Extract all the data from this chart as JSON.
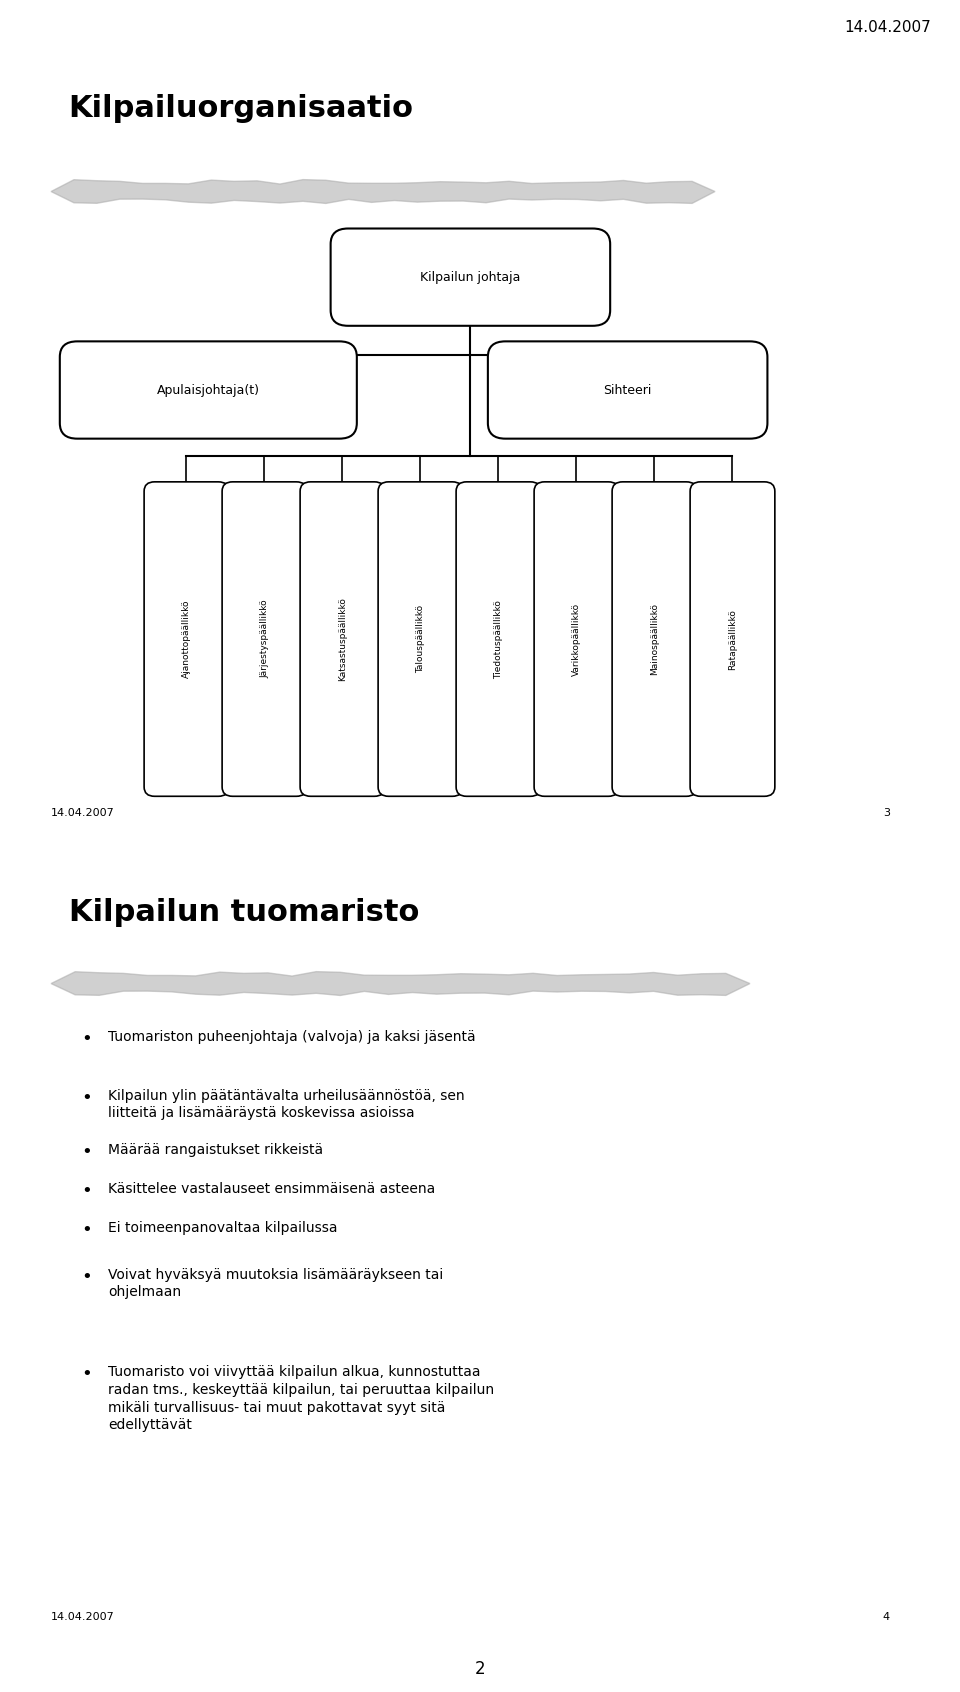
{
  "page_bg": "#f0f0f0",
  "date_text": "14.04.2007",
  "page_number_bottom": "2",
  "slide1": {
    "title": "Kilpailuorganisaatio",
    "footer_date": "14.04.2007",
    "footer_page": "3",
    "top_node": "Kilpailun johtaja",
    "left_node": "Apulaisjohtaja(t)",
    "right_node": "Sihteeri",
    "bottom_nodes": [
      "Ajanottopäällikkö",
      "Järjestyspäällikkö",
      "Katsastuspäällikkö",
      "Talouspäällikkö",
      "Tiedotuspäällikkö",
      "Varikkopäällikkö",
      "Mainospäällikkö",
      "Ratapäällikkö"
    ]
  },
  "slide2": {
    "title": "Kilpailun tuomaristo",
    "footer_date": "14.04.2007",
    "footer_page": "4",
    "bullets": [
      "Tuomariston puheenjohtaja (valvoja) ja kaksi jäsentä",
      "Kilpailun ylin päätäntävalta urheilusäännöstöä, sen\nliitteitä ja lisämääräystä koskevissa asioissa",
      "Määrää rangaistukset rikkeistä",
      "Käsittelee vastalauseet ensimmäisenä asteena",
      "Ei toimeenpanovaltaa kilpailussa",
      "Voivat hyväksyä muutoksia lisämääräykseen tai\nohjelmaan",
      "Tuomaristo voi viivyttää kilpailun alkua, kunnostuttaa\nradan tms., keskeyttää kilpailun, tai peruuttaa kilpailun\nmikäli turvallisuus- tai muut pakottavat syyt sitä\nedellyttävät"
    ]
  }
}
